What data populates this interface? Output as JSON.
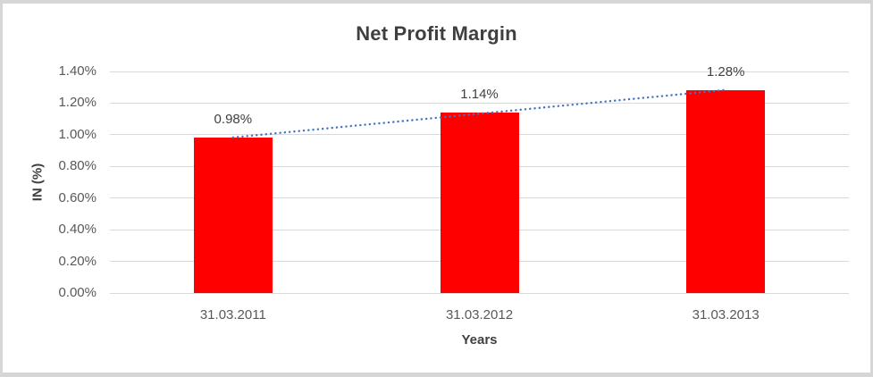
{
  "chart_data": {
    "type": "bar",
    "title": "Net Profit Margin",
    "categories": [
      "31.03.2011",
      "31.03.2012",
      "31.03.2013"
    ],
    "values": [
      0.98,
      1.14,
      1.28
    ],
    "data_labels": [
      "0.98%",
      "1.14%",
      "1.28%"
    ],
    "xlabel": "Years",
    "ylabel": "IN (%)",
    "ylim": [
      0,
      1.4
    ],
    "ytick_step": 0.2,
    "ytick_labels": [
      "0.00%",
      "0.20%",
      "0.40%",
      "0.60%",
      "0.80%",
      "1.00%",
      "1.20%",
      "1.40%"
    ],
    "grid": "horizontal",
    "legend": "none",
    "trendline": {
      "type": "linear",
      "style": "dotted"
    },
    "colors": {
      "bar": "#FF0000",
      "trendline": "#4472C4",
      "gridline": "#D9D9D9",
      "tick_label": "#595959",
      "data_label": "#404040",
      "title": "#3F3F3F",
      "axis_title": "#404040",
      "frame_border": "#D6D6D6"
    }
  }
}
